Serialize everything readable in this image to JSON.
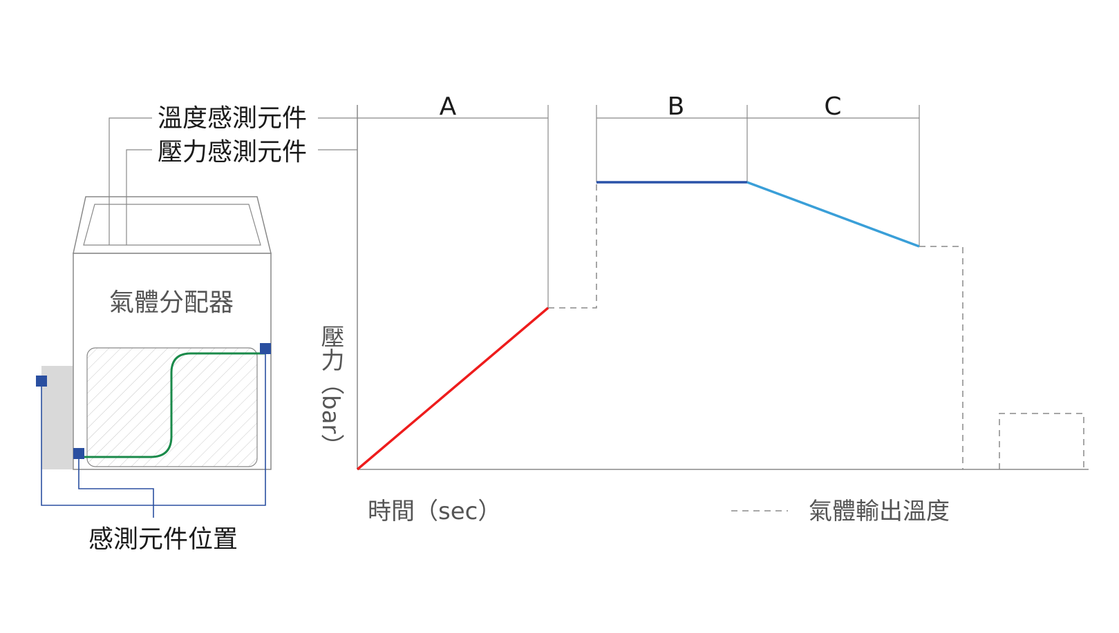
{
  "labels": {
    "temp_sensor": "溫度感測元件",
    "pressure_sensor": "壓力感測元件",
    "distributor": "氣體分配器",
    "sensor_location": "感測元件位置",
    "y_axis": "壓力（bar）",
    "x_axis": "時間（sec）",
    "legend_dashed": "氣體輸出溫度"
  },
  "phases": {
    "a": "A",
    "b": "B",
    "c": "C"
  },
  "colors": {
    "red_line": "#ee1c1c",
    "dark_blue_line": "#2a52a8",
    "light_blue_line": "#3a9fd8",
    "green_path": "#1a8a4a",
    "sensor_square": "#2a4fa0",
    "bracket_line": "#2a4fa0",
    "gray_line": "#888888"
  }
}
